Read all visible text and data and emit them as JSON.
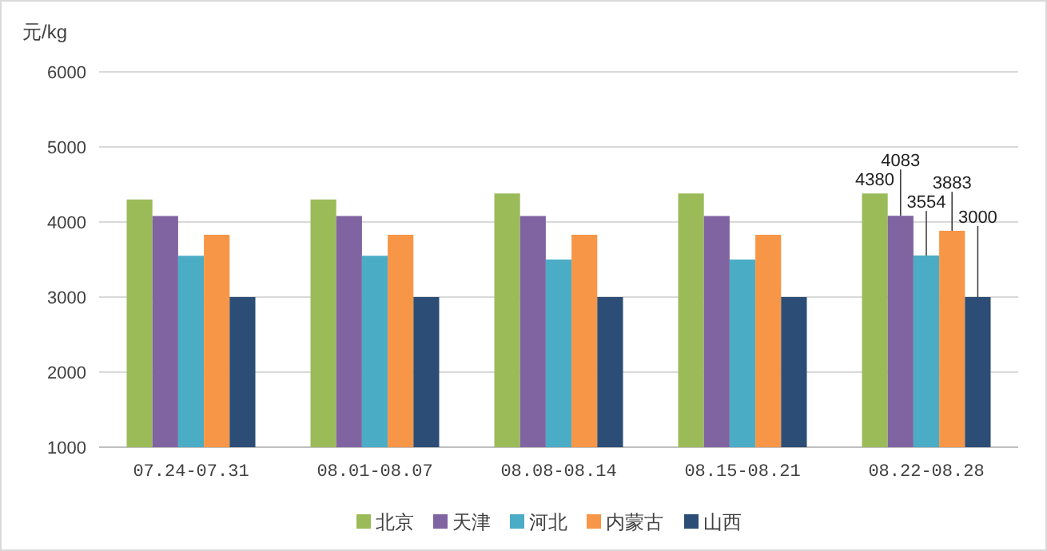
{
  "chart_data": {
    "type": "bar",
    "ylabel": "元/kg",
    "categories": [
      "07.24-07.31",
      "08.01-08.07",
      "08.08-08.14",
      "08.15-08.21",
      "08.22-08.28"
    ],
    "series": [
      {
        "name": "北京",
        "color": "#9bbb59",
        "values": [
          4300,
          4300,
          4380,
          4380,
          4380
        ],
        "value_labels": [
          null,
          null,
          null,
          null,
          "4380"
        ]
      },
      {
        "name": "天津",
        "color": "#8064a2",
        "values": [
          4080,
          4080,
          4080,
          4080,
          4083
        ],
        "value_labels": [
          null,
          null,
          null,
          null,
          "4083"
        ]
      },
      {
        "name": "河北",
        "color": "#4bacc6",
        "values": [
          3550,
          3550,
          3500,
          3500,
          3554
        ],
        "value_labels": [
          null,
          null,
          null,
          null,
          "3554"
        ]
      },
      {
        "name": "内蒙古",
        "color": "#f79646",
        "values": [
          3830,
          3830,
          3830,
          3830,
          3883
        ],
        "value_labels": [
          null,
          null,
          null,
          null,
          "3883"
        ]
      },
      {
        "name": "山西",
        "color": "#2c4d75",
        "values": [
          3000,
          3000,
          3000,
          3000,
          3000
        ],
        "value_labels": [
          null,
          null,
          null,
          null,
          "3000"
        ]
      }
    ],
    "ylim": [
      1000,
      6000
    ],
    "yticks": [
      1000,
      2000,
      3000,
      4000,
      5000,
      6000
    ],
    "grid": "y",
    "legend": "bottom"
  }
}
